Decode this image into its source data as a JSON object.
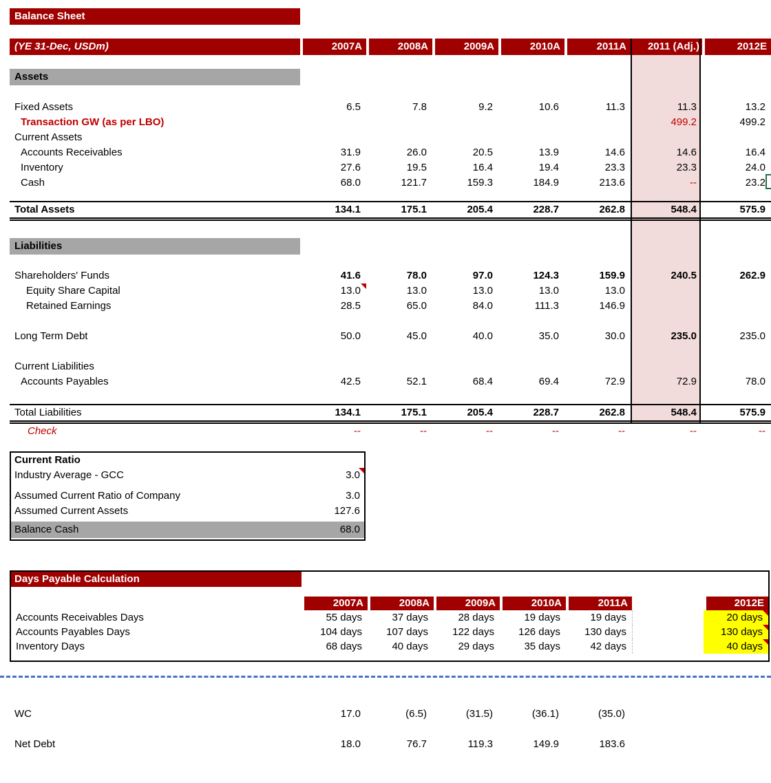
{
  "colors": {
    "banner_red": "#A00000",
    "accent_red": "#C00000",
    "highlight_pink": "#F2DCDB",
    "banner_gray": "#A6A6A6",
    "highlight_yellow": "#FFFF00",
    "selection_green": "#1E7145",
    "pagebreak_blue": "#4472C4"
  },
  "balance_sheet": {
    "title": "Balance Sheet",
    "unit_label": "(YE 31-Dec, USDm)",
    "columns": [
      "2007A",
      "2008A",
      "2009A",
      "2010A",
      "2011A",
      "2011 (Adj.)",
      "2012E"
    ],
    "assets_section": "Assets",
    "liabilities_section": "Liabilities",
    "assets_rows": [
      {
        "label": "Fixed Assets",
        "indent": 0,
        "values": [
          "6.5",
          "7.8",
          "9.2",
          "10.6",
          "11.3",
          "11.3",
          "13.2"
        ],
        "cell_class": [
          "",
          "",
          "",
          "",
          "",
          "",
          ""
        ]
      },
      {
        "label": "Transaction GW (as per LBO)",
        "indent": 1,
        "label_class": "redbold",
        "values": [
          "",
          "",
          "",
          "",
          "",
          "499.2",
          "499.2"
        ],
        "cell_class": [
          "",
          "",
          "",
          "",
          "",
          "red",
          ""
        ]
      },
      {
        "label": "Current Assets",
        "indent": 0,
        "values": [
          "",
          "",
          "",
          "",
          "",
          "",
          ""
        ],
        "cell_class": [
          "",
          "",
          "",
          "",
          "",
          "",
          ""
        ]
      },
      {
        "label": "Accounts Receivables",
        "indent": 1,
        "values": [
          "31.9",
          "26.0",
          "20.5",
          "13.9",
          "14.6",
          "14.6",
          "16.4"
        ],
        "cell_class": [
          "",
          "",
          "",
          "",
          "",
          "",
          ""
        ]
      },
      {
        "label": "Inventory",
        "indent": 1,
        "values": [
          "27.6",
          "19.5",
          "16.4",
          "19.4",
          "23.3",
          "23.3",
          "24.0"
        ],
        "cell_class": [
          "",
          "",
          "",
          "",
          "",
          "",
          ""
        ]
      },
      {
        "label": "Cash",
        "indent": 1,
        "values": [
          "68.0",
          "121.7",
          "159.3",
          "184.9",
          "213.6",
          "--",
          "23.2"
        ],
        "cell_class": [
          "",
          "",
          "",
          "",
          "",
          "red",
          ""
        ]
      }
    ],
    "total_assets_rows": [
      {
        "label": "Total Assets",
        "label_class": "bold",
        "values": [
          "134.1",
          "175.1",
          "205.4",
          "228.7",
          "262.8",
          "548.4",
          "575.9"
        ],
        "cell_class": [
          "bold",
          "bold",
          "bold",
          "bold",
          "bold",
          "bold",
          "bold"
        ]
      }
    ],
    "equity_rows": [
      {
        "label": "Shareholders' Funds",
        "indent": 0,
        "values": [
          "41.6",
          "78.0",
          "97.0",
          "124.3",
          "159.9",
          "240.5",
          "262.9"
        ],
        "cell_class": [
          "bold",
          "bold",
          "bold",
          "bold",
          "bold",
          "bold",
          "bold"
        ]
      },
      {
        "label": "Equity Share Capital",
        "indent": 2,
        "values": [
          "13.0",
          "13.0",
          "13.0",
          "13.0",
          "13.0",
          "",
          ""
        ],
        "cell_class": [
          "comment",
          "",
          "",
          "",
          "",
          "",
          ""
        ]
      },
      {
        "label": "Retained Earnings",
        "indent": 2,
        "values": [
          "28.5",
          "65.0",
          "84.0",
          "111.3",
          "146.9",
          "",
          ""
        ],
        "cell_class": [
          "",
          "",
          "",
          "",
          "",
          "",
          ""
        ]
      }
    ],
    "debt_rows": [
      {
        "label": "Long Term Debt",
        "indent": 0,
        "values": [
          "50.0",
          "45.0",
          "40.0",
          "35.0",
          "30.0",
          "235.0",
          "235.0"
        ],
        "cell_class": [
          "",
          "",
          "",
          "",
          "",
          "bold",
          ""
        ]
      }
    ],
    "current_liab_rows": [
      {
        "label": "Current Liabilities",
        "indent": 0,
        "values": [
          "",
          "",
          "",
          "",
          "",
          "",
          ""
        ],
        "cell_class": [
          "",
          "",
          "",
          "",
          "",
          "",
          ""
        ]
      },
      {
        "label": "Accounts Payables",
        "indent": 1,
        "values": [
          "42.5",
          "52.1",
          "68.4",
          "69.4",
          "72.9",
          "72.9",
          "78.0"
        ],
        "cell_class": [
          "",
          "",
          "",
          "",
          "",
          "",
          ""
        ]
      }
    ],
    "total_liabilities_rows": [
      {
        "label": "Total Liabilities",
        "values": [
          "134.1",
          "175.1",
          "205.4",
          "228.7",
          "262.8",
          "548.4",
          "575.9"
        ],
        "cell_class": [
          "bold",
          "bold",
          "bold",
          "bold",
          "bold",
          "bold",
          "bold"
        ]
      }
    ],
    "check_rows": [
      {
        "label": "Check",
        "indent": 3,
        "label_class": "italred",
        "values": [
          "--",
          "--",
          "--",
          "--",
          "--",
          "--",
          "--"
        ],
        "cell_class": [
          "red",
          "red",
          "red",
          "red",
          "red",
          "red",
          "red"
        ]
      }
    ]
  },
  "current_ratio": {
    "title": "Current Ratio",
    "rows": [
      {
        "label": "Industry Average - GCC",
        "value": "3.0"
      },
      {
        "label": "Assumed Current Ratio of Company",
        "value": "3.0"
      },
      {
        "label": "Assumed Current Assets",
        "value": "127.6"
      },
      {
        "label": "Balance Cash",
        "value": "68.0"
      }
    ]
  },
  "days_payable": {
    "title": "Days Payable Calculation",
    "columns": [
      "2007A",
      "2008A",
      "2009A",
      "2010A",
      "2011A",
      "",
      "2012E"
    ],
    "rows": [
      {
        "label": "Accounts Receivables Days",
        "values": [
          "55 days",
          "37 days",
          "28 days",
          "19 days",
          "19 days",
          "",
          "20 days"
        ],
        "cell_class": [
          "",
          "",
          "",
          "",
          "",
          "dash-left",
          "yellow comment"
        ]
      },
      {
        "label": "Accounts Payables Days",
        "values": [
          "104 days",
          "107 days",
          "122 days",
          "126 days",
          "130 days",
          "",
          "130 days"
        ],
        "cell_class": [
          "",
          "",
          "",
          "",
          "",
          "dash-left",
          "yellow comment"
        ]
      },
      {
        "label": "Inventory Days",
        "values": [
          "68 days",
          "40 days",
          "29 days",
          "35 days",
          "42 days",
          "",
          "40 days"
        ],
        "cell_class": [
          "",
          "",
          "",
          "",
          "",
          "dash-left",
          "yellow comment"
        ]
      }
    ]
  },
  "memo": {
    "wc_rows": [
      {
        "label": "WC",
        "indent": 0,
        "values": [
          "17.0",
          "(6.5)",
          "(31.5)",
          "(36.1)",
          "(35.0)",
          "",
          ""
        ],
        "cell_class": [
          "",
          "",
          "",
          "",
          "",
          "",
          ""
        ]
      }
    ],
    "net_debt_rows": [
      {
        "label": "Net Debt",
        "indent": 0,
        "values": [
          "18.0",
          "76.7",
          "119.3",
          "149.9",
          "183.6",
          "",
          ""
        ],
        "cell_class": [
          "",
          "",
          "",
          "",
          "",
          "",
          ""
        ]
      }
    ]
  }
}
